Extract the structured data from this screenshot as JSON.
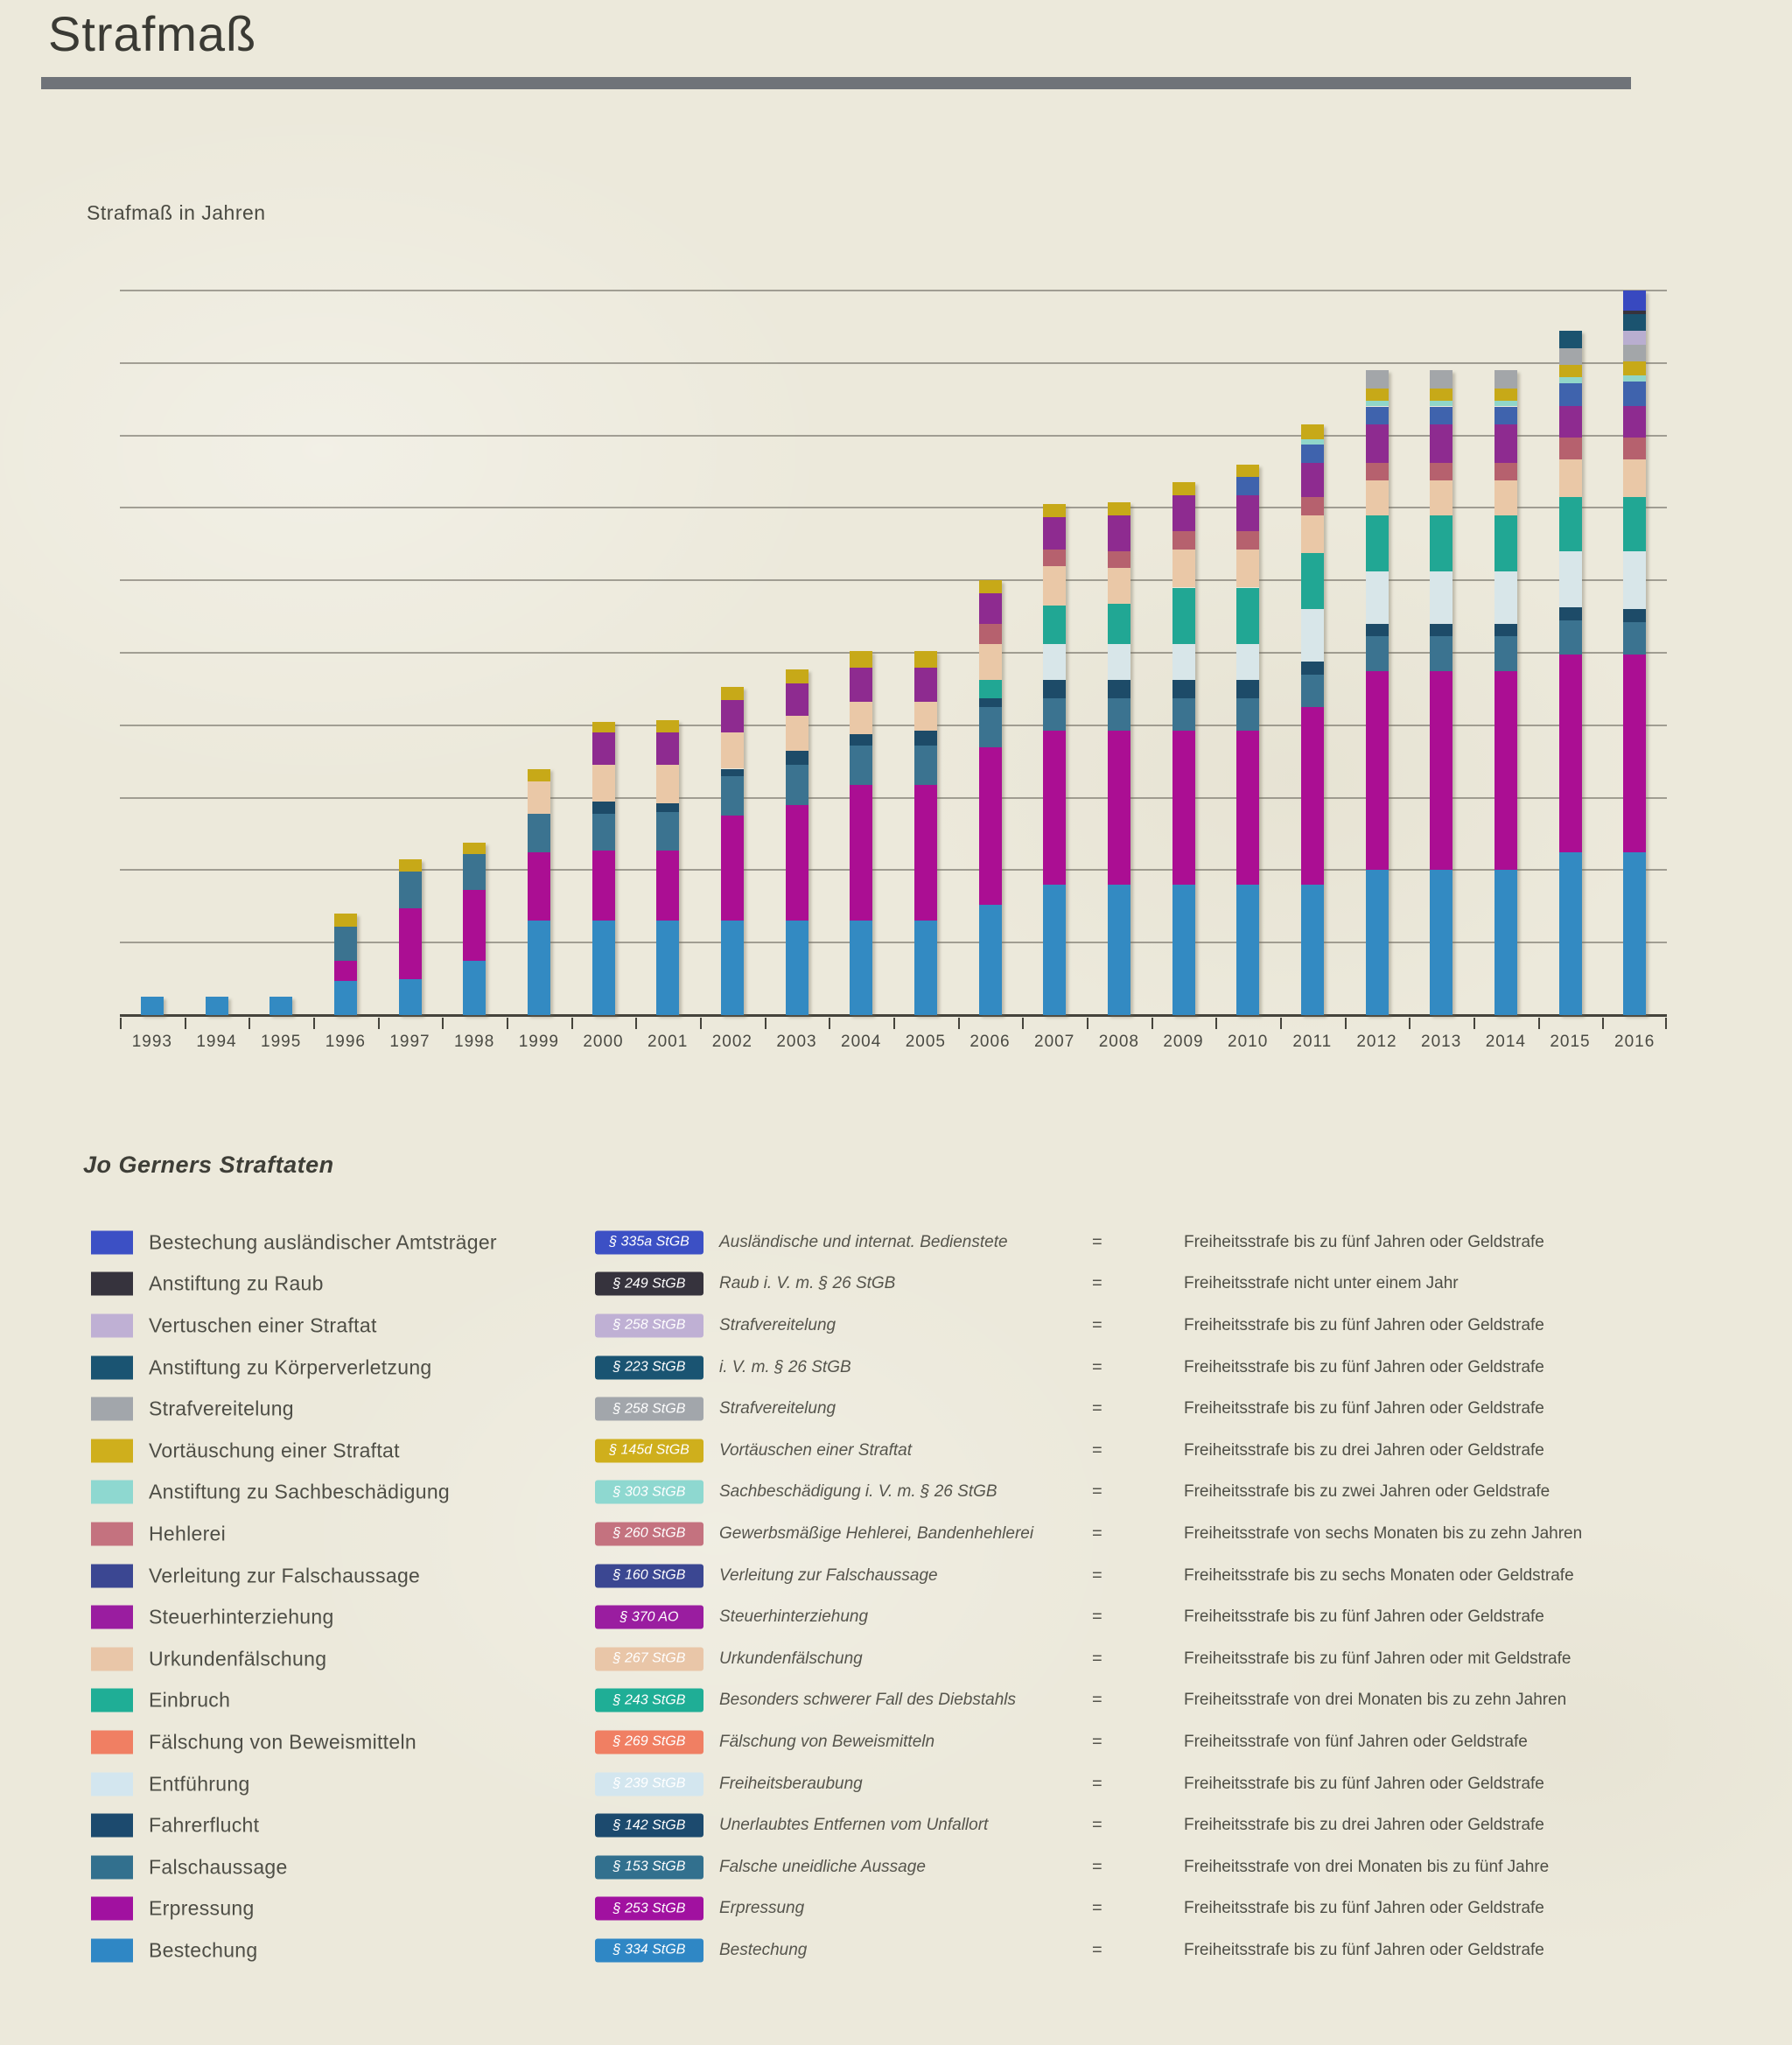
{
  "title": "Strafmaß",
  "chart": {
    "axis_label": "Strafmaß in Jahren",
    "y_ticks": [
      200,
      180,
      160,
      140,
      120,
      100,
      80,
      60,
      40,
      20
    ]
  },
  "chart_data": {
    "type": "bar",
    "stacked": true,
    "title": "Strafmaß",
    "ylabel": "Strafmaß in Jahren",
    "ylim": [
      0,
      200
    ],
    "grid": true,
    "categories": [
      1993,
      1994,
      1995,
      1996,
      1997,
      1998,
      1999,
      2000,
      2001,
      2002,
      2003,
      2004,
      2005,
      2006,
      2007,
      2008,
      2009,
      2010,
      2011,
      2012,
      2013,
      2014,
      2015,
      2016
    ],
    "series": [
      {
        "key": "bestechung",
        "name": "Bestechung",
        "color": "#338ac2",
        "values": [
          5,
          5,
          5,
          9.5,
          10,
          15,
          26,
          26,
          26,
          26,
          26,
          26,
          26,
          30.5,
          36,
          36,
          36,
          36,
          36,
          40,
          40,
          40,
          45,
          45
        ]
      },
      {
        "key": "erpressung",
        "name": "Erpressung",
        "color": "#ab0e93",
        "values": [
          0,
          0,
          0,
          5.5,
          19.5,
          19.5,
          19,
          19.5,
          19.5,
          29,
          32,
          37.5,
          37.5,
          43.5,
          42.5,
          42.5,
          42.5,
          42.5,
          49,
          55,
          55,
          55,
          54.5,
          54.5
        ]
      },
      {
        "key": "falschaussage",
        "name": "Falschaussage",
        "color": "#3b7390",
        "values": [
          0,
          0,
          0,
          9.5,
          10,
          10,
          10.5,
          10,
          10.5,
          11,
          11,
          11,
          11,
          11,
          9,
          9,
          9,
          9,
          9,
          9.5,
          9.5,
          9.5,
          9.5,
          9
        ]
      },
      {
        "key": "fahrerflucht",
        "name": "Fahrerflucht",
        "color": "#1d4b68",
        "values": [
          0,
          0,
          0,
          0,
          0,
          0,
          0,
          3.5,
          2.5,
          2,
          4,
          3,
          4,
          2.5,
          5,
          5,
          5,
          5,
          3.5,
          3.5,
          3.5,
          3.5,
          3.5,
          3.5
        ]
      },
      {
        "key": "entfuehrung",
        "name": "Entführung",
        "color": "#d8e6e9",
        "values": [
          0,
          0,
          0,
          0,
          0,
          0,
          0,
          0,
          0,
          0,
          0,
          0,
          0,
          0,
          10,
          10,
          10,
          10,
          14.5,
          14.5,
          14.5,
          14.5,
          15.5,
          16
        ]
      },
      {
        "key": "faelschung_beweismittel",
        "name": "Fälschung von Beweismitteln",
        "color": "#f17e62",
        "values": [
          0,
          0,
          0,
          0,
          0,
          0,
          0,
          0,
          0,
          0,
          0,
          0,
          0,
          0,
          0,
          0,
          0,
          0,
          0,
          0,
          0,
          0,
          0,
          0
        ]
      },
      {
        "key": "einbruch",
        "name": "Einbruch",
        "color": "#21a794",
        "values": [
          0,
          0,
          0,
          0,
          0,
          0,
          0,
          0,
          0,
          0,
          0,
          0,
          0,
          5,
          10.5,
          11,
          15.5,
          15.5,
          15.5,
          15.5,
          15.5,
          15.5,
          15,
          15
        ]
      },
      {
        "key": "urkundenfaelschung",
        "name": "Urkundenfälschung",
        "color": "#eac8a7",
        "values": [
          0,
          0,
          0,
          0,
          0,
          0,
          9,
          10,
          10.5,
          10,
          9.5,
          9,
          8,
          10,
          11,
          10,
          10.5,
          10.5,
          10.5,
          9.5,
          9.5,
          9.5,
          10.5,
          10.5
        ]
      },
      {
        "key": "hehlerei",
        "name": "Hehlerei",
        "color": "#b6616e",
        "values": [
          0,
          0,
          0,
          0,
          0,
          0,
          0,
          0,
          0,
          0,
          0,
          0,
          0,
          5.5,
          4.5,
          4.5,
          5,
          5,
          5,
          5,
          5,
          5,
          6,
          6
        ]
      },
      {
        "key": "steuerhinterziehung",
        "name": "Steuerhinterziehung",
        "color": "#8e2b90",
        "values": [
          0,
          0,
          0,
          0,
          0,
          0,
          0,
          9,
          9,
          9,
          9,
          9.5,
          9.5,
          8.5,
          9,
          10,
          10,
          10,
          9.5,
          10.5,
          10.5,
          10.5,
          8.5,
          8.5
        ]
      },
      {
        "key": "verleitung_falschaussage",
        "name": "Verleitung zur Falschaussage",
        "color": "#3f63ad",
        "values": [
          0,
          0,
          0,
          0,
          0,
          0,
          0,
          0,
          0,
          0,
          0,
          0,
          0,
          0,
          0,
          0,
          0,
          5,
          5,
          5,
          5,
          5,
          6.5,
          7
        ]
      },
      {
        "key": "sachbeschaedigung",
        "name": "Anstiftung zu Sachbeschädigung",
        "color": "#90d6c9",
        "values": [
          0,
          0,
          0,
          0,
          0,
          0,
          0,
          0,
          0,
          0,
          0,
          0,
          0,
          0,
          0,
          0,
          0,
          0,
          1.5,
          1.5,
          1.5,
          1.5,
          1.5,
          1.5
        ]
      },
      {
        "key": "vortaeuschung",
        "name": "Vortäuschung einer Straftat",
        "color": "#c7a918",
        "values": [
          0,
          0,
          0,
          3.5,
          3.5,
          3,
          3.5,
          3,
          3.5,
          3.5,
          4,
          4.5,
          4.5,
          3.5,
          3.5,
          3.5,
          3.5,
          3.5,
          4,
          3.5,
          3.5,
          3.5,
          3.5,
          4
        ]
      },
      {
        "key": "strafvereitelung",
        "name": "Strafvereitelung",
        "color": "#a3a6a9",
        "values": [
          0,
          0,
          0,
          0,
          0,
          0,
          0,
          0,
          0,
          0,
          0,
          0,
          0,
          0,
          0,
          0,
          0,
          0,
          0,
          5,
          5,
          5,
          4.5,
          4.5
        ]
      },
      {
        "key": "vertuschen",
        "name": "Vertuschen einer Straftat",
        "color": "#b9aed0",
        "values": [
          0,
          0,
          0,
          0,
          0,
          0,
          0,
          0,
          0,
          0,
          0,
          0,
          0,
          0,
          0,
          0,
          0,
          0,
          0,
          0,
          0,
          0,
          0,
          4
        ]
      },
      {
        "key": "koerperverletzung",
        "name": "Anstiftung zu Körperverletzung",
        "color": "#1b536f",
        "values": [
          0,
          0,
          0,
          0,
          0,
          0,
          0,
          0,
          0,
          0,
          0,
          0,
          0,
          0,
          0,
          0,
          0,
          0,
          0,
          0,
          0,
          0,
          5,
          4.5
        ]
      },
      {
        "key": "raub",
        "name": "Anstiftung zu Raub",
        "color": "#36333d",
        "values": [
          0,
          0,
          0,
          0,
          0,
          0,
          0,
          0,
          0,
          0,
          0,
          0,
          0,
          0,
          0,
          0,
          0,
          0,
          0,
          0,
          0,
          0,
          0,
          1
        ]
      },
      {
        "key": "amtstraeger",
        "name": "Bestechung ausländischer Amtsträger",
        "color": "#3849c0",
        "values": [
          0,
          0,
          0,
          0,
          0,
          0,
          0,
          0,
          0,
          0,
          0,
          0,
          0,
          0,
          0,
          0,
          0,
          0,
          0,
          0,
          0,
          0,
          0,
          5.5
        ]
      }
    ]
  },
  "legend": {
    "heading": "Jo Gerners Straftaten",
    "equals_sign": "=",
    "items": [
      {
        "label": "Bestechung ausländischer Amtsträger",
        "color": "#3c50c5",
        "badge": "§ 335a StGB",
        "description": "Ausländische und internat. Bedienstete",
        "penalty": "Freiheitsstrafe bis zu fünf Jahren oder Geldstrafe"
      },
      {
        "label": "Anstiftung zu Raub",
        "color": "#36333d",
        "badge": "§ 249 StGB",
        "description": "Raub  i. V. m. § 26 StGB",
        "penalty": "Freiheitsstrafe nicht unter einem Jahr"
      },
      {
        "label": "Vertuschen einer Straftat",
        "color": "#bfb0d4",
        "badge": "§ 258 StGB",
        "description": "Strafvereitelung",
        "penalty": "Freiheitsstrafe bis zu fünf Jahren oder Geldstrafe"
      },
      {
        "label": "Anstiftung zu Körperverletzung",
        "color": "#1a5472",
        "badge": "§ 223 StGB",
        "description": "i. V. m. § 26 StGB",
        "penalty": "Freiheitsstrafe bis zu fünf Jahren oder Geldstrafe"
      },
      {
        "label": "Strafvereitelung",
        "color": "#a2a6ab",
        "badge": "§ 258 StGB",
        "description": "Strafvereitelung",
        "penalty": "Freiheitsstrafe bis zu fünf Jahren oder Geldstrafe"
      },
      {
        "label": "Vortäuschung einer Straftat",
        "color": "#cfaf1c",
        "badge": "§ 145d StGB",
        "description": "Vortäuschen einer Straftat",
        "penalty": "Freiheitsstrafe bis zu drei Jahren oder Geldstrafe"
      },
      {
        "label": "Anstiftung zu Sachbeschädigung",
        "color": "#8ed8d0",
        "badge": "§ 303 StGB",
        "description": "Sachbeschädigung i. V. m. § 26 StGB",
        "penalty": "Freiheitsstrafe bis zu zwei Jahren oder Geldstrafe"
      },
      {
        "label": "Hehlerei",
        "color": "#c4727f",
        "badge": "§ 260 StGB",
        "description": "Gewerbsmäßige Hehlerei, Bandenhehlerei",
        "penalty": "Freiheitsstrafe von sechs Monaten bis zu zehn Jahren"
      },
      {
        "label": "Verleitung zur Falschaussage",
        "color": "#3b4792",
        "badge": "§ 160 StGB",
        "description": "Verleitung zur Falschaussage",
        "penalty": "Freiheitsstrafe bis zu sechs Monaten oder Geldstrafe"
      },
      {
        "label": "Steuerhinterziehung",
        "color": "#9a1da0",
        "badge": "§ 370 AO",
        "description": "Steuerhinterziehung",
        "penalty": "Freiheitsstrafe bis zu fünf Jahren oder Geldstrafe"
      },
      {
        "label": "Urkundenfälschung",
        "color": "#e9c6a8",
        "badge": "§ 267 StGB",
        "description": "Urkundenfälschung",
        "penalty": "Freiheitsstrafe bis zu fünf Jahren oder mit Geldstrafe"
      },
      {
        "label": "Einbruch",
        "color": "#1fae96",
        "badge": "§ 243 StGB",
        "description": "Besonders schwerer Fall des Diebstahls",
        "penalty": "Freiheitsstrafe von drei Monaten bis zu zehn Jahren"
      },
      {
        "label": "Fälschung von Beweismitteln",
        "color": "#f07f63",
        "badge": "§ 269 StGB",
        "description": "Fälschung von Beweismitteln",
        "penalty": "Freiheitsstrafe von fünf Jahren oder Geldstrafe"
      },
      {
        "label": "Entführung",
        "color": "#d3e6ef",
        "badge": "§ 239 StGB",
        "description": "Freiheitsberaubung",
        "penalty": "Freiheitsstrafe bis zu fünf Jahren oder Geldstrafe"
      },
      {
        "label": "Fahrerflucht",
        "color": "#1c4a6e",
        "badge": "§ 142 StGB",
        "description": "Unerlaubtes Entfernen vom Unfallort",
        "penalty": "Freiheitsstrafe bis zu drei Jahren oder Geldstrafe"
      },
      {
        "label": "Falschaussage",
        "color": "#32708e",
        "badge": "§ 153 StGB",
        "description": "Falsche uneidliche Aussage",
        "penalty": "Freiheitsstrafe von drei Monaten bis zu fünf Jahre"
      },
      {
        "label": "Erpressung",
        "color": "#a111a0",
        "badge": "§ 253 StGB",
        "description": "Erpressung",
        "penalty": "Freiheitsstrafe bis zu fünf Jahren oder Geldstrafe"
      },
      {
        "label": "Bestechung",
        "color": "#2f87c5",
        "badge": "§ 334 StGB",
        "description": "Bestechung",
        "penalty": "Freiheitsstrafe bis zu fünf Jahren oder Geldstrafe"
      }
    ]
  }
}
